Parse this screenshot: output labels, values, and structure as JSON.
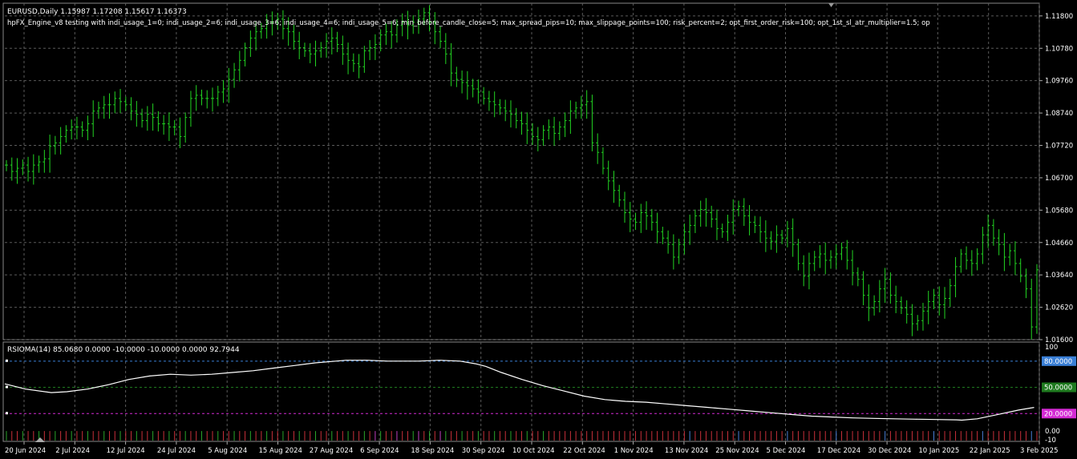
{
  "header": {
    "symbol_line": "EURUSD,Daily  1.15987 1.17208 1.15617 1.16373",
    "ea_line": "hpFX_Engine_v8 testing with indi_usage_1=0; indi_usage_2=6; indi_usage_3=6; indi_usage_4=6; indi_usage_5=6; min_before_candle_close=5; max_spread_pips=10; max_slippage_points=100; risk_percent=2; opt_first_order_risk=100; opt_1st_sl_atr_multiplier=1.5; op"
  },
  "colors": {
    "bars": "#22d422",
    "grid": "#5a5a5a",
    "rsi_line": "#ffffff",
    "level80": "#3a7fd6",
    "level50": "#1f7a1f",
    "level20": "#d42ad4",
    "bg": "#000000"
  },
  "chart_data": [
    {
      "type": "line",
      "title": "EURUSD,Daily",
      "y_ticks": [
        "1.11800",
        "1.10780",
        "1.09760",
        "1.08740",
        "1.07720",
        "1.06700",
        "1.05680",
        "1.04660",
        "1.03640",
        "1.02620",
        "1.01600"
      ],
      "ylim": [
        1.016,
        1.122
      ],
      "x_ticks": [
        "20 Jun 2024",
        "2 Jul 2024",
        "12 Jul 2024",
        "24 Jul 2024",
        "5 Aug 2024",
        "15 Aug 2024",
        "27 Aug 2024",
        "6 Sep 2024",
        "18 Sep 2024",
        "30 Sep 2024",
        "10 Oct 2024",
        "22 Oct 2024",
        "1 Nov 2024",
        "13 Nov 2024",
        "25 Nov 2024",
        "5 Dec 2024",
        "17 Dec 2024",
        "30 Dec 2024",
        "10 Jan 2025",
        "22 Jan 2025",
        "3 Feb 2025"
      ],
      "series": [
        {
          "close": [
            1.071,
            1.069,
            1.07,
            1.071,
            1.069,
            1.071,
            1.072,
            1.073,
            1.077,
            1.078,
            1.08,
            1.082,
            1.083,
            1.083,
            1.082,
            1.084,
            1.088,
            1.089,
            1.09,
            1.09,
            1.092,
            1.091,
            1.09,
            1.088,
            1.087,
            1.085,
            1.087,
            1.086,
            1.084,
            1.084,
            1.083,
            1.083,
            1.08,
            1.086,
            1.092,
            1.093,
            1.092,
            1.092,
            1.092,
            1.094,
            1.095,
            1.098,
            1.101,
            1.104,
            1.108,
            1.111,
            1.113,
            1.114,
            1.116,
            1.116,
            1.117,
            1.114,
            1.113,
            1.11,
            1.108,
            1.107,
            1.106,
            1.107,
            1.108,
            1.11,
            1.111,
            1.109,
            1.106,
            1.104,
            1.103,
            1.102,
            1.107,
            1.108,
            1.109,
            1.112,
            1.113,
            1.112,
            1.115,
            1.116,
            1.115,
            1.116,
            1.117,
            1.119,
            1.116,
            1.113,
            1.11,
            1.106,
            1.1,
            1.098,
            1.097,
            1.096,
            1.095,
            1.094,
            1.092,
            1.091,
            1.09,
            1.089,
            1.088,
            1.087,
            1.085,
            1.084,
            1.082,
            1.08,
            1.079,
            1.082,
            1.083,
            1.081,
            1.083,
            1.085,
            1.088,
            1.089,
            1.09,
            1.091,
            1.078,
            1.075,
            1.07,
            1.066,
            1.063,
            1.06,
            1.056,
            1.054,
            1.053,
            1.056,
            1.055,
            1.053,
            1.05,
            1.048,
            1.046,
            1.042,
            1.046,
            1.05,
            1.052,
            1.055,
            1.057,
            1.056,
            1.054,
            1.051,
            1.05,
            1.053,
            1.057,
            1.058,
            1.055,
            1.053,
            1.052,
            1.05,
            1.048,
            1.047,
            1.049,
            1.048,
            1.051,
            1.046,
            1.04,
            1.036,
            1.04,
            1.042,
            1.043,
            1.041,
            1.042,
            1.043,
            1.045,
            1.041,
            1.037,
            1.035,
            1.03,
            1.026,
            1.028,
            1.032,
            1.035,
            1.03,
            1.028,
            1.026,
            1.024,
            1.021,
            1.022,
            1.025,
            1.028,
            1.03,
            1.027,
            1.029,
            1.033,
            1.039,
            1.043,
            1.041,
            1.04,
            1.043,
            1.049,
            1.052,
            1.048,
            1.046,
            1.042,
            1.044,
            1.04,
            1.036,
            1.032,
            1.02,
            1.038
          ]
        }
      ]
    },
    {
      "type": "line",
      "title": "RSIOMA(14)",
      "legend_text": "RSIOMA(14) 85.0680 0.0000 -10.0000 -10.0000 0.0000 92.7944",
      "ylim": [
        -10,
        100
      ],
      "y_ticks": [
        "100",
        "0.00",
        "-10"
      ],
      "levels": [
        {
          "name": "level-80",
          "value": 80,
          "label": "80.0000",
          "color": "#3a7fd6"
        },
        {
          "name": "level-50",
          "value": 50,
          "label": "50.0000",
          "color": "#1f7a1f"
        },
        {
          "name": "level-20",
          "value": 20,
          "label": "20.0000",
          "color": "#d42ad4"
        }
      ],
      "series": [
        {
          "name": "RSIOMA",
          "x_frac": [
            0,
            0.02,
            0.045,
            0.06,
            0.08,
            0.1,
            0.12,
            0.14,
            0.16,
            0.18,
            0.2,
            0.22,
            0.24,
            0.26,
            0.28,
            0.3,
            0.32,
            0.33,
            0.35,
            0.37,
            0.38,
            0.4,
            0.42,
            0.44,
            0.455,
            0.465,
            0.48,
            0.5,
            0.52,
            0.54,
            0.56,
            0.58,
            0.6,
            0.62,
            0.64,
            0.66,
            0.68,
            0.7,
            0.72,
            0.74,
            0.76,
            0.78,
            0.8,
            0.82,
            0.84,
            0.86,
            0.88,
            0.9,
            0.92,
            0.925,
            0.94,
            0.96,
            0.98,
            0.995
          ],
          "values": [
            54,
            48,
            44,
            45,
            48,
            53,
            59,
            63,
            65,
            64,
            65,
            67,
            69,
            72,
            75,
            78,
            80,
            81,
            81,
            80,
            80,
            80,
            81,
            80,
            77,
            74,
            67,
            59,
            52,
            46,
            40,
            36,
            34,
            33,
            31,
            29,
            27,
            25,
            23,
            21,
            19,
            17,
            16,
            15,
            14.5,
            14,
            13.6,
            13.2,
            12.8,
            12.5,
            14,
            19,
            24,
            27
          ]
        }
      ]
    }
  ]
}
